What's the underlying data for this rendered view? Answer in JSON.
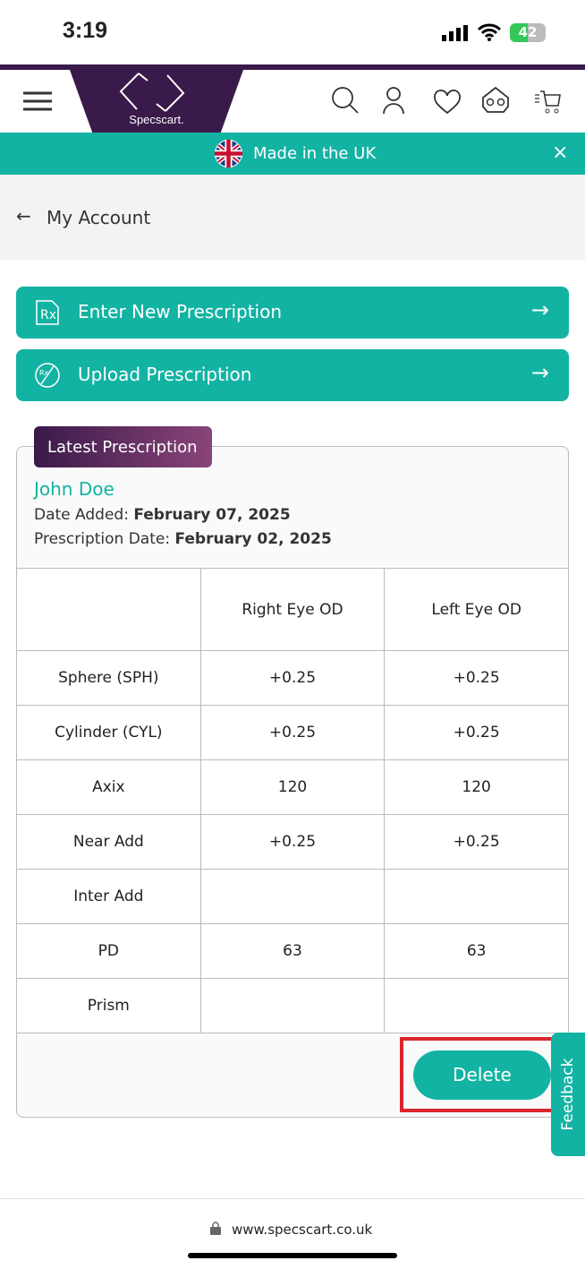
{
  "status": {
    "time": "3:19",
    "battery": "42"
  },
  "header": {
    "logo": "Specscart.",
    "icons": [
      "menu-icon",
      "search-icon",
      "user-icon",
      "heart-icon",
      "glasses-home-icon",
      "cart-icon"
    ]
  },
  "banner": {
    "text": "Made in the UK"
  },
  "account": {
    "back_label": "My Account"
  },
  "actions": [
    {
      "label": "Enter New Prescription",
      "icon": "rx-document-icon"
    },
    {
      "label": "Upload Prescription",
      "icon": "rx-upload-icon"
    }
  ],
  "prescription": {
    "tab": "Latest Prescription",
    "name": "John Doe",
    "date_added_label": "Date Added:",
    "date_added": "February 07, 2025",
    "rx_date_label": "Prescription Date:",
    "rx_date": "February 02, 2025",
    "columns": [
      "",
      "Right Eye OD",
      "Left Eye OD"
    ],
    "rows": [
      [
        "Sphere (SPH)",
        "+0.25",
        "+0.25"
      ],
      [
        "Cylinder (CYL)",
        "+0.25",
        "+0.25"
      ],
      [
        "Axix",
        "120",
        "120"
      ],
      [
        "Near Add",
        "+0.25",
        "+0.25"
      ],
      [
        "Inter Add",
        "",
        ""
      ],
      [
        "PD",
        "63",
        "63"
      ],
      [
        "Prism",
        "",
        ""
      ]
    ],
    "delete_label": "Delete"
  },
  "feedback": "Feedback",
  "url": "www.specscart.co.uk",
  "colors": {
    "teal": "#13b3a3",
    "purple": "#3a1a4a",
    "highlight": "#d9262c"
  }
}
